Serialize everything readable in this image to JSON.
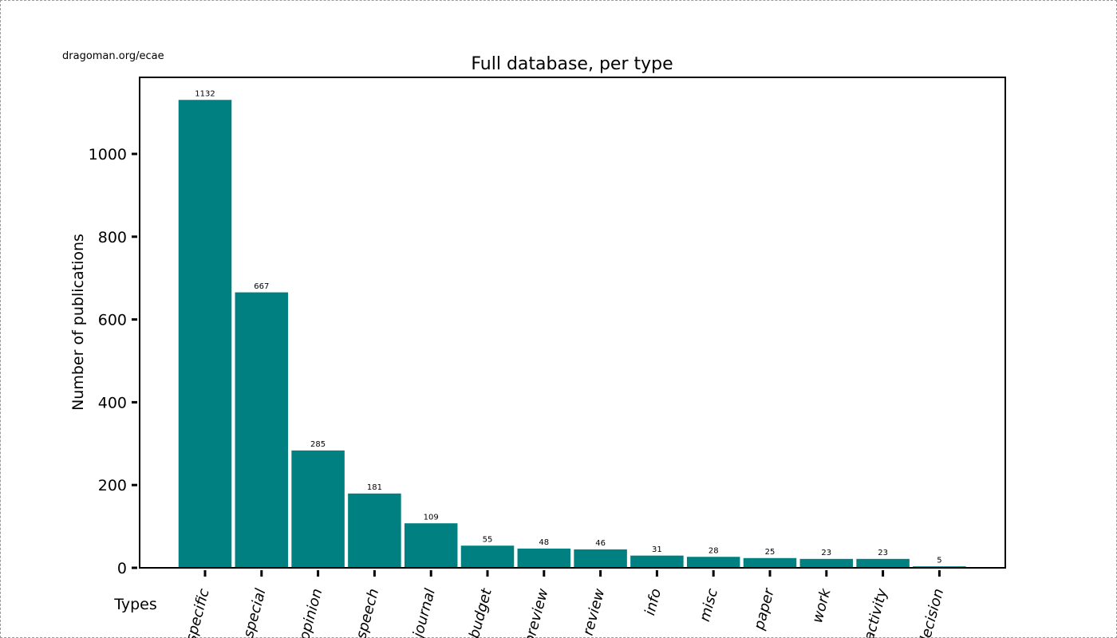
{
  "source_note": "dragoman.org/ecae",
  "chart_data": {
    "type": "bar",
    "title": "Full database, per type",
    "xlabel": "Types",
    "ylabel": "Number of publications",
    "categories": [
      "specific",
      "special",
      "opinion",
      "speech",
      "journal",
      "budget",
      "preview",
      "review",
      "info",
      "misc",
      "paper",
      "work",
      "activity",
      "decision"
    ],
    "values": [
      1132,
      667,
      285,
      181,
      109,
      55,
      48,
      46,
      31,
      28,
      25,
      23,
      23,
      5
    ],
    "yticks": [
      0,
      200,
      400,
      600,
      800,
      1000
    ],
    "ylim": [
      0,
      1185
    ],
    "grid": false,
    "bar_color": "#008080"
  }
}
